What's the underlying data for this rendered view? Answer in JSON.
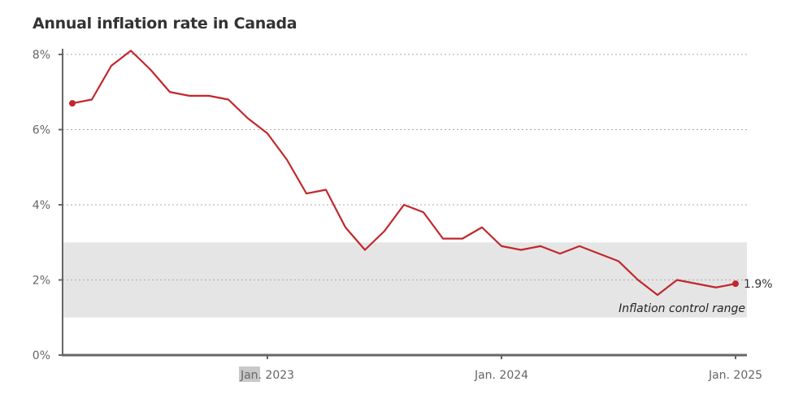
{
  "chart_data": {
    "type": "line",
    "title": "Annual inflation rate in Canada",
    "xlabel": "",
    "ylabel": "",
    "ylim": [
      0,
      8
    ],
    "y_ticks": [
      0,
      2,
      4,
      6,
      8
    ],
    "y_tick_labels": [
      "0%",
      "2%",
      "4%",
      "6%",
      "8%"
    ],
    "x_ticks": [
      {
        "label": "Jan. 2023",
        "index": 10,
        "highlight": "Jan"
      },
      {
        "label": "Jan. 2024",
        "index": 22
      },
      {
        "label": "Jan. 2025",
        "index": 34
      }
    ],
    "x": [
      "2022-03",
      "2022-04",
      "2022-05",
      "2022-06",
      "2022-07",
      "2022-08",
      "2022-09",
      "2022-10",
      "2022-11",
      "2022-12",
      "2023-01",
      "2023-02",
      "2023-03",
      "2023-04",
      "2023-05",
      "2023-06",
      "2023-07",
      "2023-08",
      "2023-09",
      "2023-10",
      "2023-11",
      "2023-12",
      "2024-01",
      "2024-02",
      "2024-03",
      "2024-04",
      "2024-05",
      "2024-06",
      "2024-07",
      "2024-08",
      "2024-09",
      "2024-10",
      "2024-11",
      "2024-12",
      "2025-01"
    ],
    "series": [
      {
        "name": "Annual inflation rate",
        "color": "#c1272d",
        "values": [
          6.7,
          6.8,
          7.7,
          8.1,
          7.6,
          7.0,
          6.9,
          6.9,
          6.8,
          6.3,
          5.9,
          5.2,
          4.3,
          4.4,
          3.4,
          2.8,
          3.3,
          4.0,
          3.8,
          3.1,
          3.1,
          3.4,
          2.9,
          2.8,
          2.9,
          2.7,
          2.9,
          2.7,
          2.5,
          2.0,
          1.6,
          2.0,
          1.9,
          1.8,
          1.9
        ]
      }
    ],
    "end_label": "1.9%",
    "band": {
      "from": 1,
      "to": 3,
      "label": "Inflation control range",
      "color": "#e5e5e5"
    },
    "grid": true
  }
}
